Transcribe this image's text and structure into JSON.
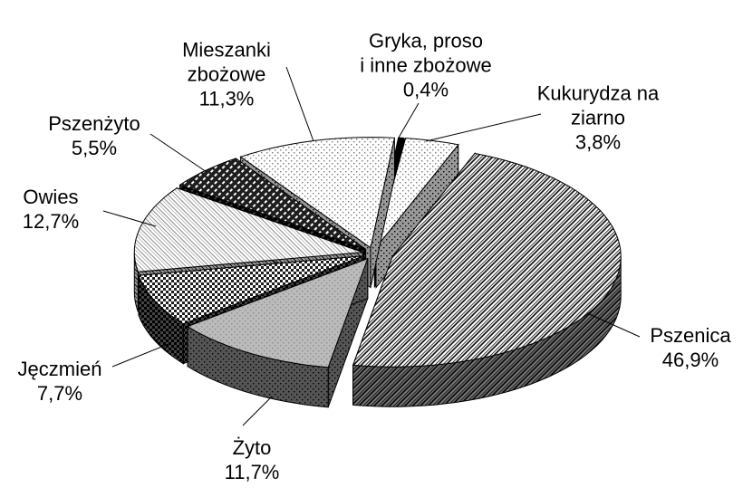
{
  "chart_data": {
    "type": "pie3d",
    "categories": [
      "Gryka, proso\ni inne zbożowe",
      "Kukurydza na\nziarno",
      "Pszenica",
      "Żyto",
      "Jęczmień",
      "Owies",
      "Pszenżyto",
      "Mieszanki\nzbożowe"
    ],
    "values": [
      0.4,
      3.8,
      46.9,
      11.7,
      7.7,
      12.7,
      5.5,
      11.3
    ],
    "value_labels": [
      "0,4%",
      "3,8%",
      "46,9%",
      "11,7%",
      "7,7%",
      "12,7%",
      "5,5%",
      "11,3%"
    ],
    "colors": [
      "#000000",
      "#7a7a7a",
      "#000000",
      "#8c8c8c",
      "#1e1e1e",
      "#8a8a8a",
      "#1e1e1e",
      "#7a7a7a"
    ]
  }
}
